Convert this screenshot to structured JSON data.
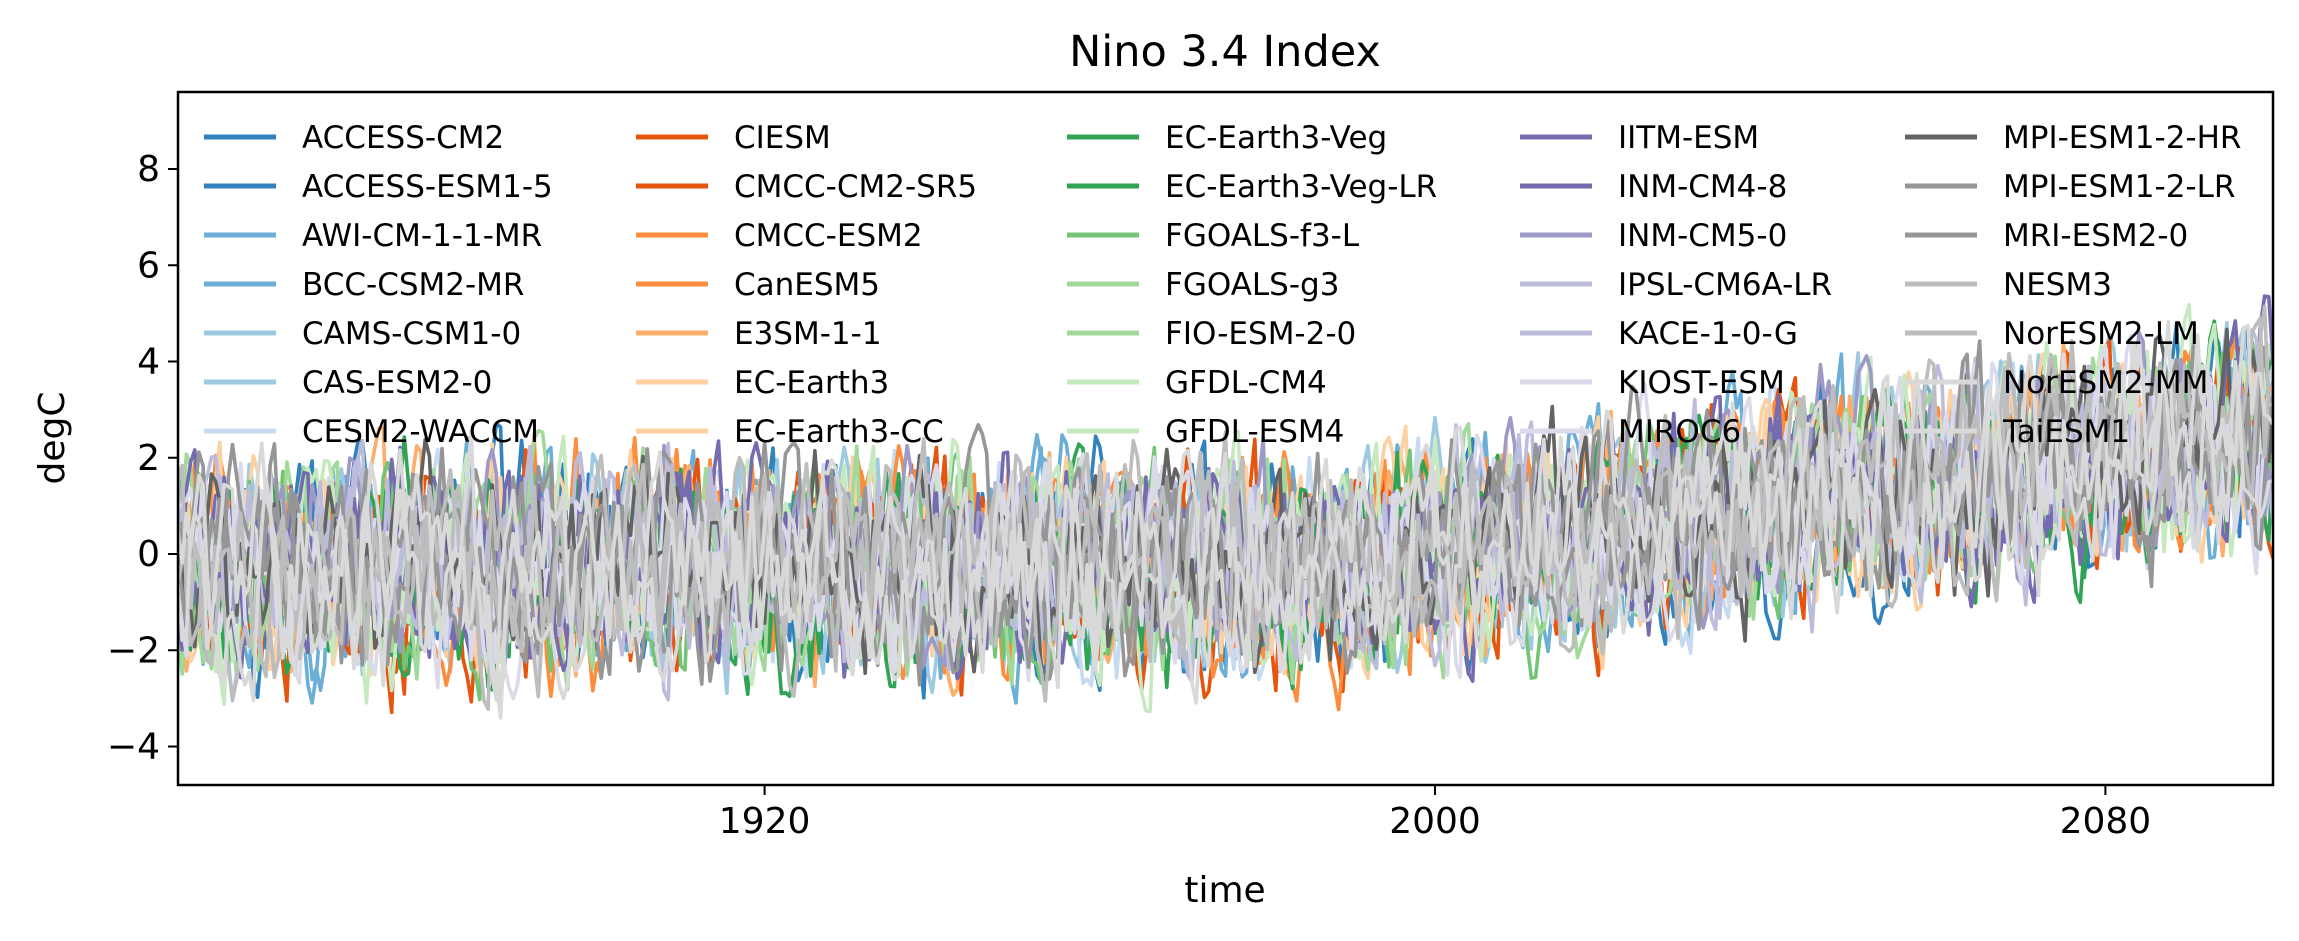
{
  "chart_data": {
    "type": "line",
    "title": "Nino 3.4 Index",
    "xlabel": "time",
    "ylabel": "degC",
    "xlim": [
      1850,
      2100
    ],
    "ylim": [
      -4.8,
      9.6
    ],
    "xticks": [
      1920,
      2000,
      2080
    ],
    "xtick_labels": [
      "1920",
      "2000",
      "2080"
    ],
    "yticks": [
      -4,
      -2,
      0,
      2,
      4,
      6,
      8
    ],
    "ytick_labels": [
      "−4",
      "−2",
      "0",
      "2",
      "4",
      "6",
      "8"
    ],
    "grid": false,
    "legend": {
      "placement": "upper-left",
      "columns": 5,
      "frame": false
    },
    "time_range": [
      1850,
      2100
    ],
    "trend": {
      "start_mean": -0.3,
      "end_mean": 2.6,
      "ramp_start_year": 1990,
      "noise_amplitude_degC": 1.6
    },
    "series": [
      {
        "name": "ACCESS-CM2",
        "color": "#3182bd"
      },
      {
        "name": "ACCESS-ESM1-5",
        "color": "#3182bd"
      },
      {
        "name": "AWI-CM-1-1-MR",
        "color": "#6baed6"
      },
      {
        "name": "BCC-CSM2-MR",
        "color": "#6baed6"
      },
      {
        "name": "CAMS-CSM1-0",
        "color": "#9ecae1"
      },
      {
        "name": "CAS-ESM2-0",
        "color": "#9ecae1"
      },
      {
        "name": "CESM2-WACCM",
        "color": "#c6dbef"
      },
      {
        "name": "CIESM",
        "color": "#e6550d"
      },
      {
        "name": "CMCC-CM2-SR5",
        "color": "#e6550d"
      },
      {
        "name": "CMCC-ESM2",
        "color": "#fd8d3c"
      },
      {
        "name": "CanESM5",
        "color": "#fd8d3c"
      },
      {
        "name": "E3SM-1-1",
        "color": "#fdae6b"
      },
      {
        "name": "EC-Earth3",
        "color": "#fdd0a2"
      },
      {
        "name": "EC-Earth3-CC",
        "color": "#fdd0a2"
      },
      {
        "name": "EC-Earth3-Veg",
        "color": "#31a354"
      },
      {
        "name": "EC-Earth3-Veg-LR",
        "color": "#31a354"
      },
      {
        "name": "FGOALS-f3-L",
        "color": "#74c476"
      },
      {
        "name": "FGOALS-g3",
        "color": "#a1d99b"
      },
      {
        "name": "FIO-ESM-2-0",
        "color": "#a1d99b"
      },
      {
        "name": "GFDL-CM4",
        "color": "#c7e9c0"
      },
      {
        "name": "GFDL-ESM4",
        "color": "#c7e9c0"
      },
      {
        "name": "IITM-ESM",
        "color": "#756bb1"
      },
      {
        "name": "INM-CM4-8",
        "color": "#756bb1"
      },
      {
        "name": "INM-CM5-0",
        "color": "#9e9ac8"
      },
      {
        "name": "IPSL-CM6A-LR",
        "color": "#bcbddc"
      },
      {
        "name": "KACE-1-0-G",
        "color": "#bcbddc"
      },
      {
        "name": "KIOST-ESM",
        "color": "#dadaeb"
      },
      {
        "name": "MIROC6",
        "color": "#dadaeb"
      },
      {
        "name": "MPI-ESM1-2-HR",
        "color": "#636363"
      },
      {
        "name": "MPI-ESM1-2-LR",
        "color": "#969696"
      },
      {
        "name": "MRI-ESM2-0",
        "color": "#969696"
      },
      {
        "name": "NESM3",
        "color": "#bdbdbd"
      },
      {
        "name": "NorESM2-LM",
        "color": "#bdbdbd"
      },
      {
        "name": "NorESM2-MM",
        "color": "#d9d9d9"
      },
      {
        "name": "TaiESM1",
        "color": "#d9d9d9"
      }
    ]
  }
}
